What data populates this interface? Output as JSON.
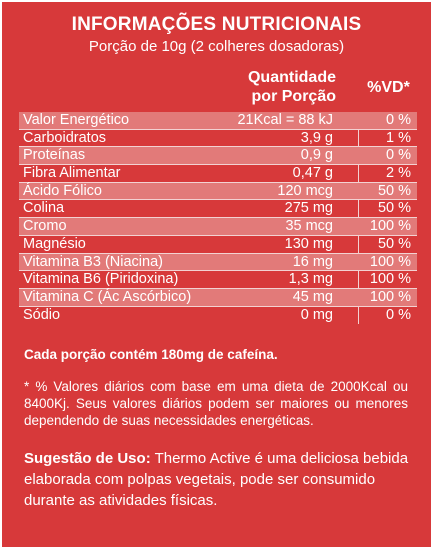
{
  "header": {
    "title": "INFORMAÇÕES NUTRICIONAIS",
    "serving": "Porção de 10g (2 colheres dosadoras)"
  },
  "columns": {
    "quantity_line1": "Quantidade",
    "quantity_line2": "por Porção",
    "vd": "%VD*"
  },
  "rows": [
    {
      "name": "Valor Energético",
      "amount": "21Kcal = 88 kJ",
      "vd": "0 %"
    },
    {
      "name": "Carboidratos",
      "amount": "3,9 g",
      "vd": "1 %"
    },
    {
      "name": "Proteínas",
      "amount": "0,9 g",
      "vd": "0 %"
    },
    {
      "name": "Fibra Alimentar",
      "amount": "0,47 g",
      "vd": "2 %"
    },
    {
      "name": "Ácido Fólico",
      "amount": "120 mcg",
      "vd": "50 %"
    },
    {
      "name": "Colina",
      "amount": "275 mg",
      "vd": "50 %"
    },
    {
      "name": "Cromo",
      "amount": "35 mcg",
      "vd": "100 %"
    },
    {
      "name": "Magnésio",
      "amount": "130 mg",
      "vd": "50 %"
    },
    {
      "name": "Vitamina B3 (Niacina)",
      "amount": "16 mg",
      "vd": "100 %"
    },
    {
      "name": "Vitamina B6 (Piridoxina)",
      "amount": "1,3 mg",
      "vd": "100 %"
    },
    {
      "name": "Vitamina C (Ác Ascórbico)",
      "amount": "45 mg",
      "vd": "100 %"
    },
    {
      "name": "Sódio",
      "amount": "0 mg",
      "vd": "0 %"
    }
  ],
  "caffeine_note": "Cada porção contém 180mg de cafeína.",
  "footnote": "* % Valores diários com base em uma dieta de 2000Kcal ou 8400Kj. Seus valores diários podem ser maiores ou menores dependendo de suas necessidades energéticas.",
  "usage": {
    "label": "Sugestão de Uso:",
    "text": " Thermo Active é uma deliciosa bebida elaborada com polpas vegetais, pode ser consumido durante as atividades físicas."
  },
  "colors": {
    "background": "#d7393a",
    "shaded_row": "#e27a79",
    "text": "#ffffff"
  }
}
